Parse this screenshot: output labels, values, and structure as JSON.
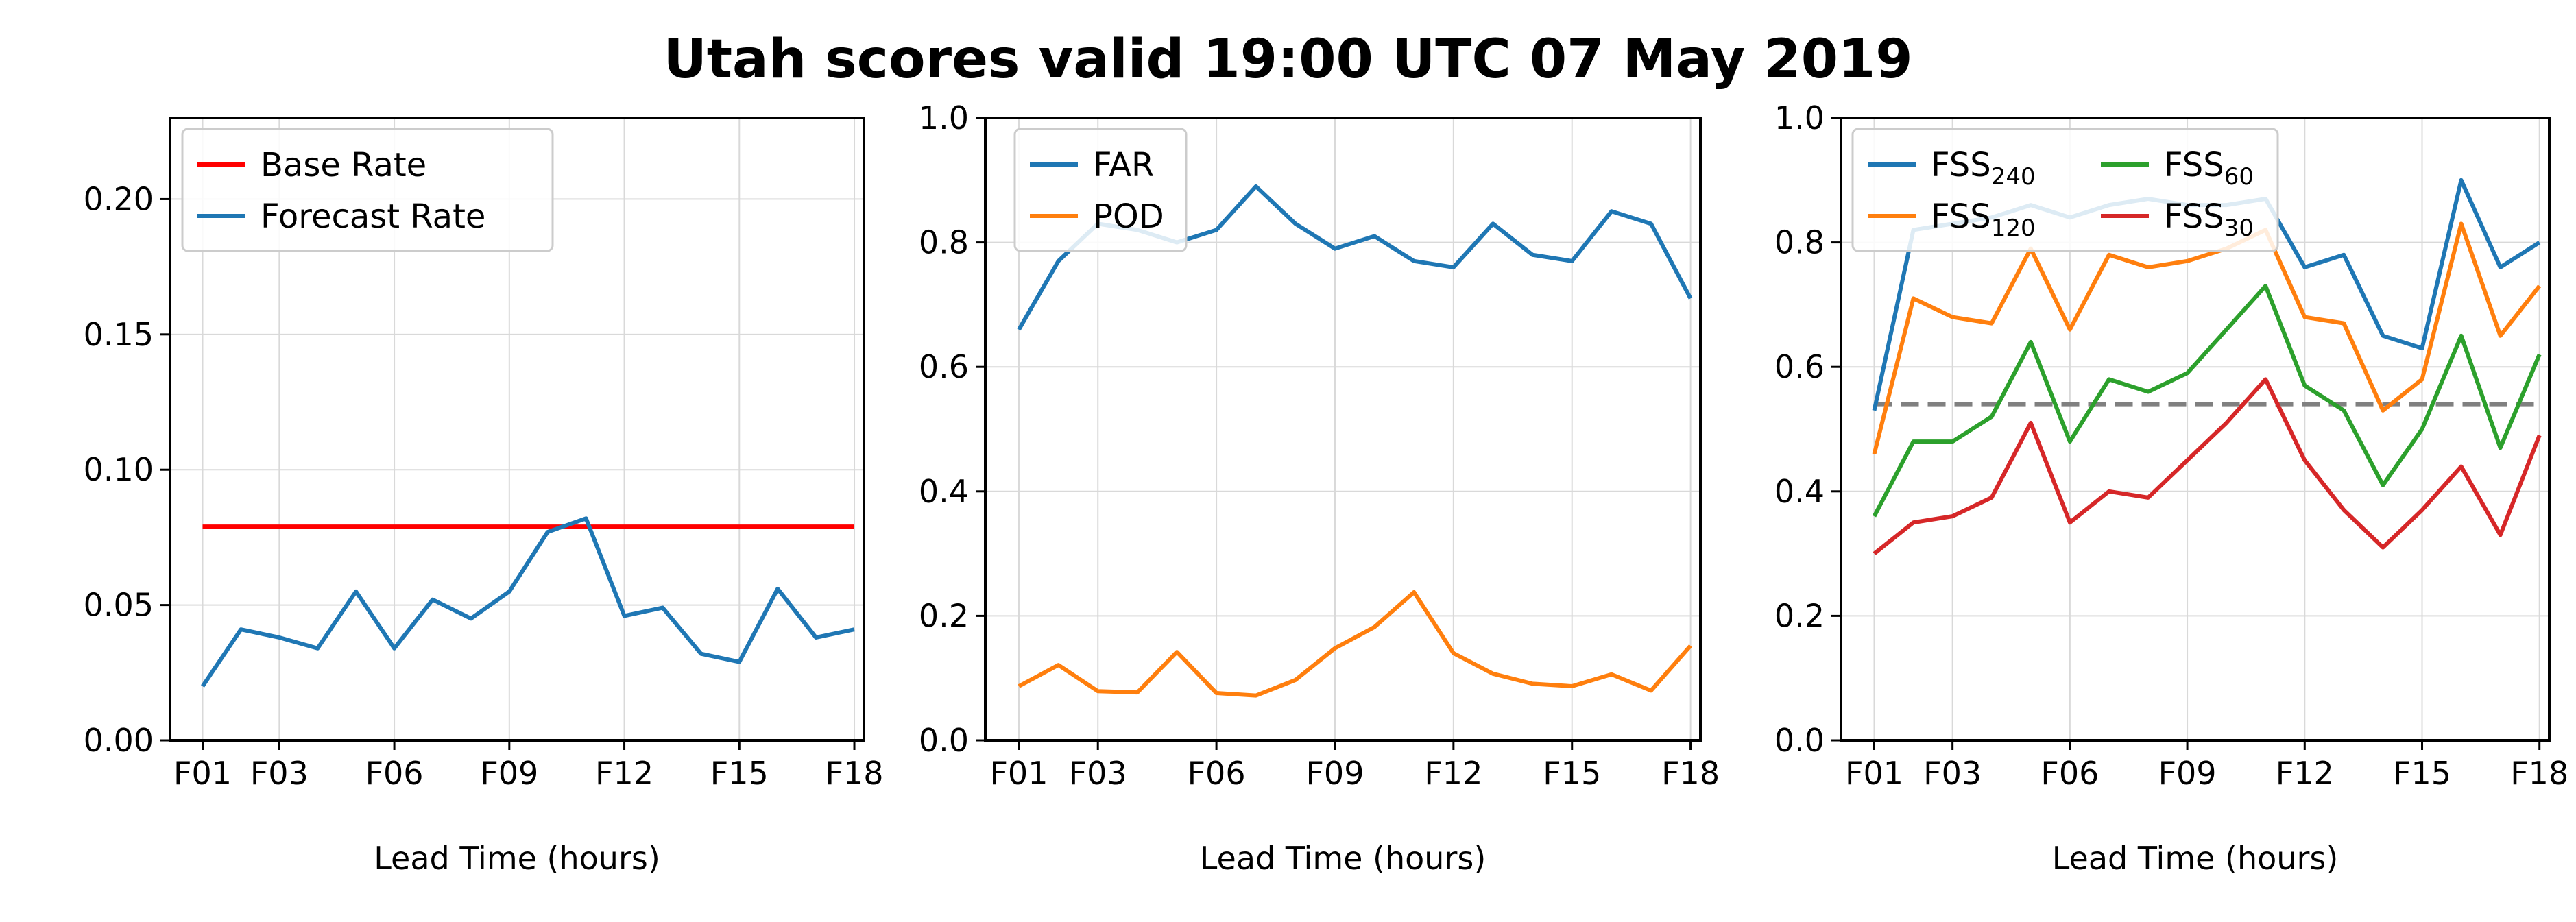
{
  "title": "Utah scores valid 19:00 UTC 07 May 2019",
  "chart_data": [
    {
      "type": "line",
      "xlabel": "Lead Time (hours)",
      "ylabel": "",
      "x": [
        1,
        2,
        3,
        4,
        5,
        6,
        7,
        8,
        9,
        10,
        11,
        12,
        13,
        14,
        15,
        16,
        17,
        18
      ],
      "xticks": [
        1,
        3,
        6,
        9,
        12,
        15,
        18
      ],
      "xtick_labels": [
        "F01",
        "F03",
        "F06",
        "F09",
        "F12",
        "F15",
        "F18"
      ],
      "xlim": [
        0.15,
        18.25
      ],
      "ylim": [
        0,
        0.23
      ],
      "yticks": [
        0,
        0.05,
        0.1,
        0.15,
        0.2
      ],
      "ytick_labels": [
        "0.00",
        "0.05",
        "0.10",
        "0.15",
        "0.20"
      ],
      "grid": true,
      "legend": {
        "placement": "top-left",
        "columns": 1
      },
      "series": [
        {
          "name": "Base Rate",
          "color": "#ff0000",
          "dashed": false,
          "values": [
            0.079,
            0.079,
            0.079,
            0.079,
            0.079,
            0.079,
            0.079,
            0.079,
            0.079,
            0.079,
            0.079,
            0.079,
            0.079,
            0.079,
            0.079,
            0.079,
            0.079,
            0.079
          ]
        },
        {
          "name": "Forecast Rate",
          "color": "#1f77b4",
          "dashed": false,
          "values": [
            0.02,
            0.041,
            0.038,
            0.034,
            0.055,
            0.034,
            0.052,
            0.045,
            0.055,
            0.077,
            0.082,
            0.046,
            0.049,
            0.032,
            0.029,
            0.056,
            0.038,
            0.041
          ]
        }
      ]
    },
    {
      "type": "line",
      "xlabel": "Lead Time (hours)",
      "ylabel": "",
      "x": [
        1,
        2,
        3,
        4,
        5,
        6,
        7,
        8,
        9,
        10,
        11,
        12,
        13,
        14,
        15,
        16,
        17,
        18
      ],
      "xticks": [
        1,
        3,
        6,
        9,
        12,
        15,
        18
      ],
      "xtick_labels": [
        "F01",
        "F03",
        "F06",
        "F09",
        "F12",
        "F15",
        "F18"
      ],
      "xlim": [
        0.15,
        18.25
      ],
      "ylim": [
        0,
        1.0
      ],
      "yticks": [
        0,
        0.2,
        0.4,
        0.6,
        0.8,
        1.0
      ],
      "ytick_labels": [
        "0.0",
        "0.2",
        "0.4",
        "0.6",
        "0.8",
        "1.0"
      ],
      "grid": true,
      "legend": {
        "placement": "top-left",
        "columns": 1
      },
      "series": [
        {
          "name": "FAR",
          "color": "#1f77b4",
          "dashed": false,
          "values": [
            0.66,
            0.77,
            0.83,
            0.82,
            0.8,
            0.82,
            0.89,
            0.83,
            0.79,
            0.81,
            0.77,
            0.76,
            0.83,
            0.78,
            0.77,
            0.85,
            0.83,
            0.71
          ]
        },
        {
          "name": "POD",
          "color": "#ff7f0e",
          "dashed": false,
          "values": [
            0.087,
            0.121,
            0.079,
            0.077,
            0.142,
            0.076,
            0.072,
            0.097,
            0.148,
            0.182,
            0.238,
            0.14,
            0.107,
            0.091,
            0.087,
            0.106,
            0.08,
            0.152
          ]
        }
      ]
    },
    {
      "type": "line",
      "xlabel": "Lead Time (hours)",
      "ylabel": "",
      "x": [
        1,
        2,
        3,
        4,
        5,
        6,
        7,
        8,
        9,
        10,
        11,
        12,
        13,
        14,
        15,
        16,
        17,
        18
      ],
      "xticks": [
        1,
        3,
        6,
        9,
        12,
        15,
        18
      ],
      "xtick_labels": [
        "F01",
        "F03",
        "F06",
        "F09",
        "F12",
        "F15",
        "F18"
      ],
      "xlim": [
        0.15,
        18.25
      ],
      "ylim": [
        0,
        1.0
      ],
      "yticks": [
        0,
        0.2,
        0.4,
        0.6,
        0.8,
        1.0
      ],
      "ytick_labels": [
        "0.0",
        "0.2",
        "0.4",
        "0.6",
        "0.8",
        "1.0"
      ],
      "grid": true,
      "legend": {
        "placement": "top-left",
        "columns": 2
      },
      "reference_line": {
        "value": 0.54,
        "color": "#808080",
        "dashed": true
      },
      "series": [
        {
          "name": "FSS",
          "sub": "240",
          "color": "#1f77b4",
          "dashed": false,
          "values": [
            0.53,
            0.82,
            0.83,
            0.84,
            0.86,
            0.84,
            0.86,
            0.87,
            0.86,
            0.86,
            0.87,
            0.76,
            0.78,
            0.65,
            0.63,
            0.9,
            0.76,
            0.8
          ]
        },
        {
          "name": "FSS",
          "sub": "120",
          "color": "#ff7f0e",
          "dashed": false,
          "values": [
            0.46,
            0.71,
            0.68,
            0.67,
            0.79,
            0.66,
            0.78,
            0.76,
            0.77,
            0.79,
            0.82,
            0.68,
            0.67,
            0.53,
            0.58,
            0.83,
            0.65,
            0.73
          ]
        },
        {
          "name": "FSS",
          "sub": "60",
          "color": "#2ca02c",
          "dashed": false,
          "values": [
            0.36,
            0.48,
            0.48,
            0.52,
            0.64,
            0.48,
            0.58,
            0.56,
            0.59,
            0.66,
            0.73,
            0.57,
            0.53,
            0.41,
            0.5,
            0.65,
            0.47,
            0.62
          ]
        },
        {
          "name": "FSS",
          "sub": "30",
          "color": "#d62728",
          "dashed": false,
          "values": [
            0.3,
            0.35,
            0.36,
            0.39,
            0.51,
            0.35,
            0.4,
            0.39,
            0.45,
            0.51,
            0.58,
            0.45,
            0.37,
            0.31,
            0.37,
            0.44,
            0.33,
            0.49
          ]
        }
      ]
    }
  ]
}
